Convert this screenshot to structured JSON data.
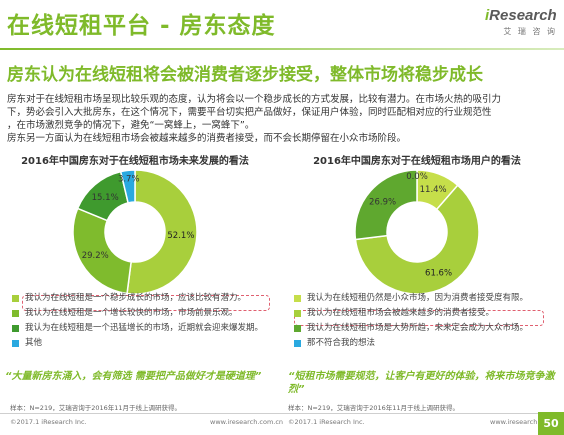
{
  "header": {
    "title": "在线短租平台 - 房东态度",
    "logo_prefix": "i",
    "logo_brand": "Research",
    "logo_sub": "艾 瑞 咨 询"
  },
  "subtitle": "房东认为在线短租将会被消费者逐步接受，整体市场将稳步成长",
  "body": [
    "房东对于在线短租市场呈现比较乐观的态度，认为将会以一个稳步成长的方式发展，比较有潜力。在市场火热的吸引力",
    "下，势必会引入大批房东，在这个情况下，需要平台切实把产品做好，保证用户体验，同时匹配相对应的行业规范性",
    "，在市场激烈竞争的情况下，避免“一窝蜂上，一窝蜂下”。",
    "房东另一方面认为在线短租市场会被越来越多的消费者接受，而不会长期停留在小众市场阶段。"
  ],
  "chart_data": [
    {
      "type": "pie",
      "title": "2016年中国房东对于在线短租市场未来发展的看法",
      "labels": [
        "我认为在线短租是一个稳步成长的市场，应该比较有潜力。",
        "我认为在线短租是一个增长较快的市场，市场前景乐观。",
        "我认为在线短租是一个迅猛增长的市场，近期就会迎来爆发期。",
        "其他"
      ],
      "values": [
        52.1,
        29.2,
        15.1,
        3.7
      ],
      "value_labels": [
        "52.1%",
        "29.2%",
        "15.1%",
        "3.7%"
      ],
      "colors": [
        "#a8cf3c",
        "#7fbb2d",
        "#3f9a2e",
        "#2aa9e0"
      ]
    },
    {
      "type": "pie",
      "title": "2016年中国房东对于在线短租市场用户的看法",
      "labels": [
        "我认为在线短租仍然是小众市场，因为消费者接受度有限。",
        "我认为在线短租市场会被越来越多的消费者接受。",
        "我认为在线短租市场是大势所趋，未来定会成为大众市场。",
        "那不符合我的想法"
      ],
      "values": [
        11.4,
        61.6,
        26.9,
        0.0
      ],
      "value_labels": [
        "11.4%",
        "61.6%",
        "26.9%",
        "0.0%"
      ],
      "colors": [
        "#c6de4a",
        "#a8cf3c",
        "#5fa82f",
        "#2aa9e0"
      ]
    }
  ],
  "quotes": {
    "left": "“大量新房东涌入，会有筛选 需要把产品做好才是硬道理”",
    "right": "“短租市场需要规范，让客户有更好的体验，将来市场竞争激烈”"
  },
  "sample": {
    "left": "样本：N=219，艾瑞咨询于2016年11月于线上调研获得。",
    "right": "样本：N=219，艾瑞咨询于2016年11月于线上调研获得。"
  },
  "footer": {
    "copyright": "©2017.1 iResearch Inc.",
    "url": "www.iresearch.com.cn",
    "page": "50"
  }
}
